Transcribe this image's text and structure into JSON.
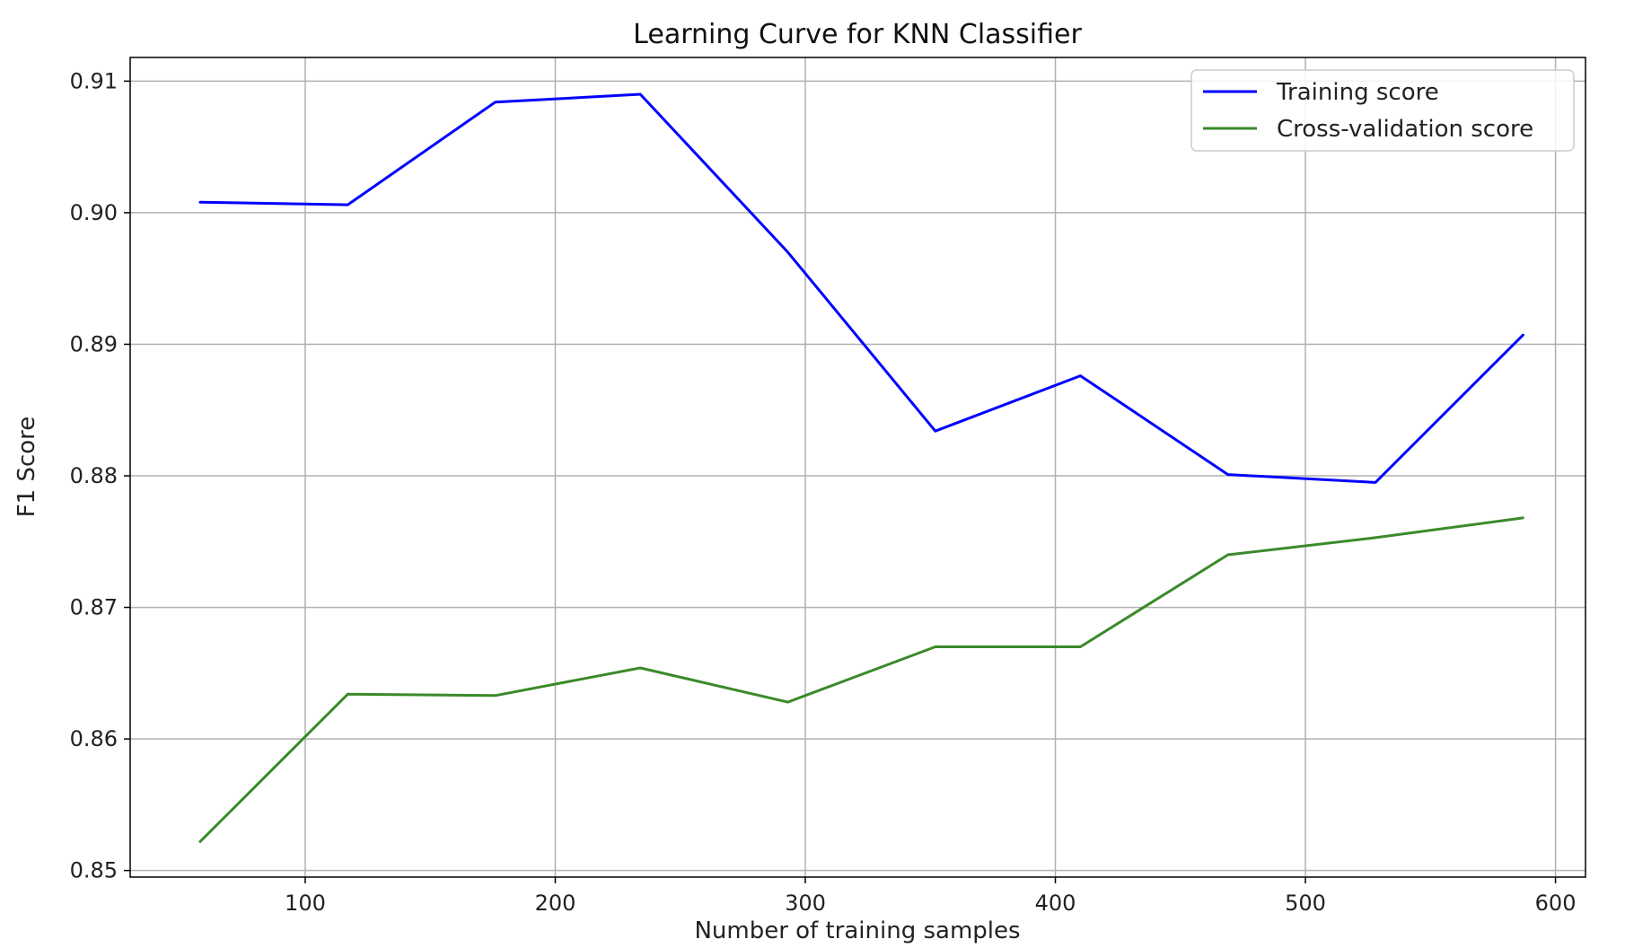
{
  "chart_data": {
    "type": "line",
    "title": "Learning Curve for KNN Classifier",
    "xlabel": "Number of training samples",
    "ylabel": "F1 Score",
    "xlim": [
      30,
      612
    ],
    "ylim": [
      0.8495,
      0.9118
    ],
    "xticks": [
      100,
      200,
      300,
      400,
      500,
      600
    ],
    "xtick_labels": [
      "100",
      "200",
      "300",
      "400",
      "500",
      "600"
    ],
    "yticks": [
      0.85,
      0.86,
      0.87,
      0.88,
      0.89,
      0.9,
      0.91
    ],
    "ytick_labels": [
      "0.85",
      "0.86",
      "0.87",
      "0.88",
      "0.89",
      "0.90",
      "0.91"
    ],
    "grid": true,
    "legend_position": "top-right",
    "x": [
      58,
      117,
      176,
      234,
      293,
      352,
      410,
      469,
      528,
      587
    ],
    "series": [
      {
        "name": "Training score",
        "color": "#0000ff",
        "values": [
          0.9008,
          0.9006,
          0.9084,
          0.909,
          0.897,
          0.8834,
          0.8876,
          0.8801,
          0.8795,
          0.8907
        ]
      },
      {
        "name": "Cross-validation score",
        "color": "#3a8a2a",
        "values": [
          0.8522,
          0.8634,
          0.8633,
          0.8654,
          0.8628,
          0.867,
          0.867,
          0.874,
          0.8753,
          0.8768
        ]
      }
    ]
  }
}
